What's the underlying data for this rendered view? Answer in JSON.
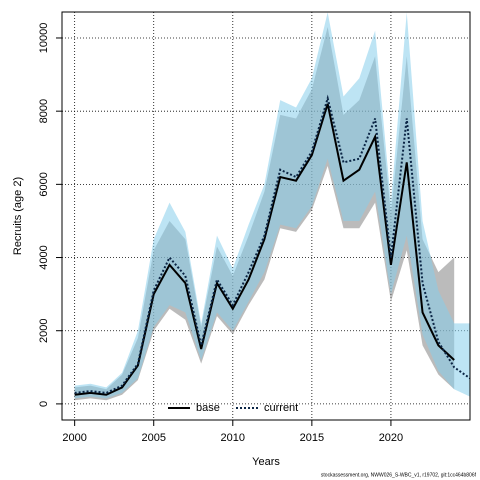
{
  "chart_data": {
    "type": "line",
    "xlabel": "Years",
    "ylabel": "Recruits (age 2)",
    "footer": "stockassessment.org, NWW026_S-WBC_v1, r19702, git:1cc464b806f",
    "xlim": [
      1999.2,
      2025.0
    ],
    "xticks": [
      2000,
      2005,
      2010,
      2015,
      2020
    ],
    "ylim": [
      -440,
      10710
    ],
    "yticks": [
      0,
      2000,
      4000,
      6000,
      8000,
      10000
    ],
    "grid": true,
    "legend": "bottom",
    "series": [
      {
        "name": "base",
        "color": "#000000",
        "linestyle": "solid",
        "band_color": "rgba(120,120,120,0.5)",
        "x": [
          2000,
          2001,
          2002,
          2003,
          2004,
          2005,
          2006,
          2007,
          2008,
          2009,
          2010,
          2011,
          2012,
          2013,
          2014,
          2015,
          2016,
          2017,
          2018,
          2019,
          2020,
          2021,
          2022,
          2023,
          2024
        ],
        "values": [
          250,
          300,
          250,
          450,
          1050,
          3000,
          3800,
          3300,
          1500,
          3300,
          2600,
          3400,
          4500,
          6200,
          6100,
          6800,
          8200,
          6100,
          6400,
          7300,
          3800,
          6600,
          2500,
          1600,
          1200
        ],
        "upper": [
          450,
          500,
          400,
          800,
          1800,
          4200,
          5000,
          4500,
          2100,
          4300,
          3500,
          4600,
          5800,
          7900,
          7800,
          8600,
          10300,
          7900,
          8300,
          9500,
          5200,
          9500,
          4500,
          3600,
          4000
        ],
        "lower": [
          100,
          150,
          100,
          250,
          650,
          2000,
          2600,
          2300,
          1100,
          2400,
          1900,
          2700,
          3400,
          4800,
          4700,
          5300,
          6500,
          4800,
          4800,
          5500,
          2800,
          4200,
          1600,
          800,
          400
        ]
      },
      {
        "name": "current",
        "color": "#0b2545",
        "linestyle": "dotted",
        "band_color": "rgba(135,206,235,0.55)",
        "x": [
          2000,
          2001,
          2002,
          2003,
          2004,
          2005,
          2006,
          2007,
          2008,
          2009,
          2010,
          2011,
          2012,
          2013,
          2014,
          2015,
          2016,
          2017,
          2018,
          2019,
          2020,
          2021,
          2022,
          2023,
          2024,
          2025
        ],
        "values": [
          300,
          350,
          300,
          500,
          1100,
          3100,
          4000,
          3500,
          1600,
          3400,
          2700,
          3600,
          4600,
          6400,
          6200,
          6900,
          8350,
          6600,
          6700,
          7800,
          4000,
          7800,
          3300,
          1700,
          1000,
          700
        ],
        "upper": [
          500,
          550,
          450,
          850,
          2000,
          4500,
          5500,
          4700,
          2200,
          4600,
          3700,
          4900,
          6000,
          8300,
          8100,
          8900,
          10700,
          8400,
          8900,
          10200,
          5500,
          10700,
          5000,
          3100,
          2200,
          2200
        ],
        "lower": [
          150,
          200,
          150,
          300,
          700,
          2100,
          2700,
          2500,
          1200,
          2500,
          2000,
          2800,
          3600,
          4900,
          4800,
          5400,
          6700,
          5000,
          5000,
          5800,
          3000,
          4600,
          1900,
          900,
          400,
          200
        ]
      }
    ]
  }
}
